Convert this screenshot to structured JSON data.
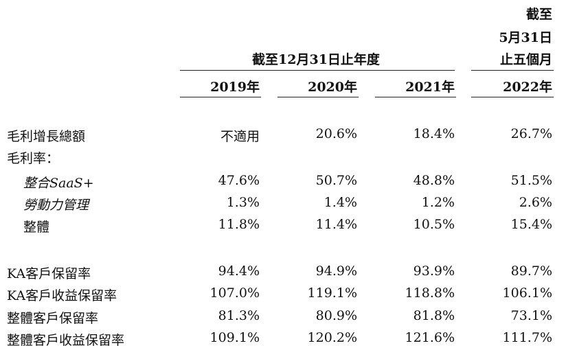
{
  "header": {
    "period_group_label": "截至12月31日止年度",
    "last_col_line1": "截至",
    "last_col_line2": "5月31日",
    "last_col_line3": "止五個月",
    "years": [
      "2019年",
      "2020年",
      "2021年",
      "2022年"
    ]
  },
  "rows": [
    {
      "label": "毛利增長總額",
      "values": [
        "不適用",
        "20.6%",
        "18.4%",
        "26.7%"
      ]
    },
    {
      "label": "毛利率：",
      "values": [
        "",
        "",
        "",
        ""
      ]
    },
    {
      "label": "整合SaaS+",
      "values": [
        "47.6%",
        "50.7%",
        "48.8%",
        "51.5%"
      ]
    },
    {
      "label": "勞動力管理",
      "values": [
        "1.3%",
        "1.4%",
        "1.2%",
        "2.6%"
      ]
    },
    {
      "label": "整體",
      "values": [
        "11.8%",
        "11.4%",
        "10.5%",
        "15.4%"
      ]
    },
    {
      "label": "KA客戶保留率",
      "values": [
        "94.4%",
        "94.9%",
        "93.9%",
        "89.7%"
      ]
    },
    {
      "label": "KA客戶收益保留率",
      "values": [
        "107.0%",
        "119.1%",
        "118.8%",
        "106.1%"
      ]
    },
    {
      "label": "整體客戶保留率",
      "values": [
        "81.3%",
        "80.9%",
        "81.8%",
        "73.1%"
      ]
    },
    {
      "label": "整體客戶收益保留率",
      "values": [
        "109.1%",
        "120.2%",
        "121.6%",
        "111.7%"
      ]
    }
  ]
}
